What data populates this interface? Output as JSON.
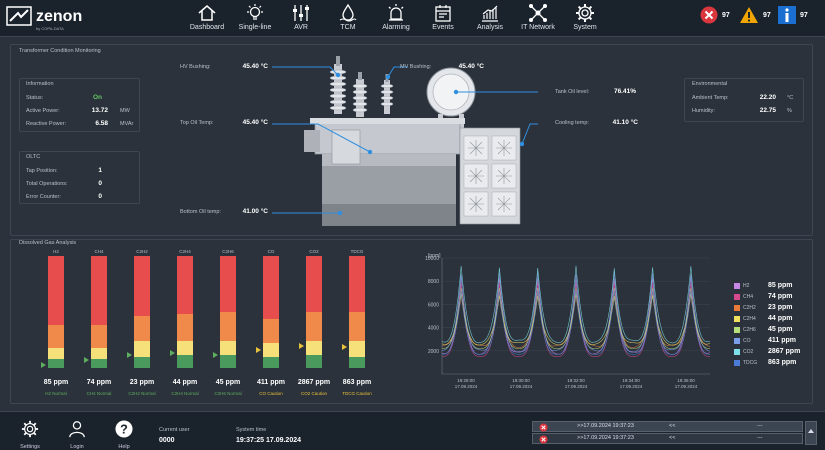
{
  "brand": {
    "name": "zenon",
    "sub": "by COPA-DATA"
  },
  "nav": [
    {
      "label": "Dashboard",
      "icon": "home-icon"
    },
    {
      "label": "Single-line",
      "icon": "bulb-icon"
    },
    {
      "label": "AVR",
      "icon": "sliders-icon"
    },
    {
      "label": "TCM",
      "icon": "oil-icon"
    },
    {
      "label": "Alarming",
      "icon": "beacon-icon"
    },
    {
      "label": "Events",
      "icon": "calendar-icon"
    },
    {
      "label": "Analysis",
      "icon": "chart-icon"
    },
    {
      "label": "IT Network",
      "icon": "network-icon"
    },
    {
      "label": "System",
      "icon": "gear-icon"
    }
  ],
  "alarms": [
    {
      "count": "97",
      "color": "#d9363e"
    },
    {
      "count": "97",
      "color": "#f0a500"
    },
    {
      "count": "97",
      "color": "#1a6fd1"
    }
  ],
  "tcm": {
    "title": "Transformer Condition Monitoring",
    "hv_bushing": {
      "label": "HV Bushing:",
      "value": "45.40 °C"
    },
    "mv_bushing": {
      "label": "MV Bushing:",
      "value": "45.40 °C"
    },
    "top_oil": {
      "label": "Top Oil Temp:",
      "value": "45.40 °C"
    },
    "bottom_oil": {
      "label": "Bottom Oil temp:",
      "value": "41.00 °C"
    },
    "tank_oil": {
      "label": "Tank Oil level:",
      "value": "76.41%"
    },
    "cooling": {
      "label": "Cooling temp:",
      "value": "41.10 °C"
    }
  },
  "info": {
    "title": "Information",
    "rows": [
      {
        "label": "Status:",
        "value": "On",
        "unit": ""
      },
      {
        "label": "Active Power:",
        "value": "13.72",
        "unit": "MW"
      },
      {
        "label": "Reactive Power:",
        "value": "6.58",
        "unit": "MVAr"
      }
    ]
  },
  "oltc": {
    "title": "OLTC",
    "rows": [
      {
        "label": "Tap Position:",
        "value": "1"
      },
      {
        "label": "Total Operations:",
        "value": "0"
      },
      {
        "label": "Error Counter:",
        "value": "0"
      }
    ]
  },
  "env": {
    "title": "Environmental",
    "rows": [
      {
        "label": "Ambient Temp:",
        "value": "22.20",
        "unit": "°C"
      },
      {
        "label": "Humidity:",
        "value": "22.75",
        "unit": "%"
      }
    ]
  },
  "dga": {
    "title": "Dissolved Gas Analysis",
    "gases": [
      {
        "name": "H2",
        "value": "85 ppm",
        "status": "H2 Normal",
        "green": 0.08,
        "yellow": 0.1,
        "orange": 0.2,
        "marker": 0.03,
        "scolor": "#5fae5f"
      },
      {
        "name": "CH4",
        "value": "74 ppm",
        "status": "CH4 Normal",
        "green": 0.08,
        "yellow": 0.1,
        "orange": 0.2,
        "marker": 0.07,
        "scolor": "#5fae5f"
      },
      {
        "name": "C2H2",
        "value": "23 ppm",
        "status": "C2H2 Normal",
        "green": 0.1,
        "yellow": 0.14,
        "orange": 0.22,
        "marker": 0.12,
        "scolor": "#5fae5f"
      },
      {
        "name": "C2H4",
        "value": "44 ppm",
        "status": "C2H4 Normal",
        "green": 0.12,
        "yellow": 0.12,
        "orange": 0.24,
        "marker": 0.13,
        "scolor": "#5fae5f"
      },
      {
        "name": "C2H6",
        "value": "45 ppm",
        "status": "C2H6 Normal",
        "green": 0.12,
        "yellow": 0.12,
        "orange": 0.26,
        "marker": 0.12,
        "scolor": "#5fae5f"
      },
      {
        "name": "CO",
        "value": "411 ppm",
        "status": "CO Caution",
        "green": 0.1,
        "yellow": 0.12,
        "orange": 0.22,
        "marker": 0.16,
        "scolor": "#e8c23a"
      },
      {
        "name": "CO2",
        "value": "2867 ppm",
        "status": "CO2 Caution",
        "green": 0.12,
        "yellow": 0.12,
        "orange": 0.26,
        "marker": 0.2,
        "scolor": "#e8c23a"
      },
      {
        "name": "TDCG",
        "value": "863 ppm",
        "status": "TDCG Caution",
        "green": 0.1,
        "yellow": 0.14,
        "orange": 0.26,
        "marker": 0.19,
        "scolor": "#e8c23a"
      }
    ]
  },
  "chart_data": {
    "type": "line",
    "ylabel": "[ppm]",
    "ylim": [
      0,
      10000
    ],
    "yticks": [
      2000,
      4000,
      6000,
      8000,
      10000
    ],
    "xticks": [
      {
        "time": "19:28:00",
        "date": "17.09.2024"
      },
      {
        "time": "19:30:00",
        "date": "17.09.2024"
      },
      {
        "time": "19:32:00",
        "date": "17.09.2024"
      },
      {
        "time": "19:34:00",
        "date": "17.09.2024"
      },
      {
        "time": "19:36:00",
        "date": "17.09.2024"
      }
    ],
    "peaks": 7,
    "series": [
      {
        "name": "H2",
        "value": "85 ppm",
        "color": "#c586e6",
        "peak": 8300,
        "base": 1800
      },
      {
        "name": "CH4",
        "value": "74 ppm",
        "color": "#d44a8c",
        "peak": 7800,
        "base": 1500
      },
      {
        "name": "C2H2",
        "value": "23 ppm",
        "color": "#e87a3a",
        "peak": 7000,
        "base": 2400
      },
      {
        "name": "C2H4",
        "value": "44 ppm",
        "color": "#f0e060",
        "peak": 6800,
        "base": 2600
      },
      {
        "name": "C2H6",
        "value": "45 ppm",
        "color": "#b8e07a",
        "peak": 7400,
        "base": 2200
      },
      {
        "name": "CO",
        "value": "411 ppm",
        "color": "#7a9ee8",
        "peak": 8700,
        "base": 2000
      },
      {
        "name": "CO2",
        "value": "2867 ppm",
        "color": "#7fe0e8",
        "peak": 9200,
        "base": 2800
      },
      {
        "name": "TDCG",
        "value": "863 ppm",
        "color": "#4a7cd8",
        "peak": 7200,
        "base": 1700
      }
    ]
  },
  "footer": {
    "settings": "Settings",
    "login": "Login",
    "help": "Help",
    "user_label": "Current user",
    "user_value": "0000",
    "time_label": "System time",
    "time_value": "19:37:25 17.09.2024",
    "events": [
      {
        "time": ">>17.09.2024 19:37:23",
        "mark": "<<",
        "dash": "---"
      },
      {
        "time": ">>17.09.2024 19:37:23",
        "mark": "<<",
        "dash": "---"
      }
    ]
  }
}
